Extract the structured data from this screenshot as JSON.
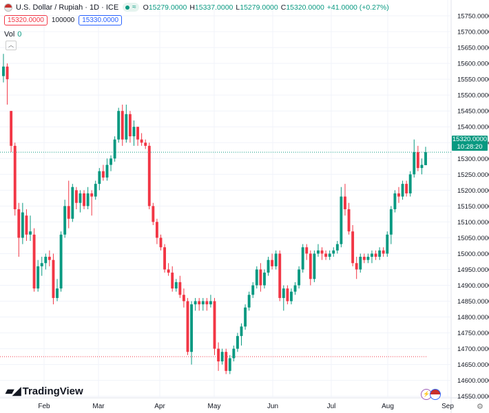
{
  "header": {
    "symbol": "U.S. Dollar / Rupiah · 1D · ICE",
    "pill_icon": "waves-icon",
    "pill_label": "≈",
    "open_label": "O",
    "open": "15279.0000",
    "high_label": "H",
    "high": "15337.0000",
    "low_label": "L",
    "low": "15279.0000",
    "close_label": "C",
    "close": "15320.0000",
    "change": "+41.0000 (+0.27%)"
  },
  "trade": {
    "sell": "15320.0000",
    "qty": "100000",
    "buy": "15330.0000"
  },
  "volume": {
    "label": "Vol",
    "value": "0"
  },
  "price_tag": {
    "price": "15320.0000",
    "countdown": "10:28:20"
  },
  "branding": {
    "logo": "TradingView"
  },
  "colors": {
    "up": "#089981",
    "down": "#f23645",
    "grid": "#f0f3fa"
  },
  "chart_data": {
    "type": "candlestick",
    "ylim": [
      14545,
      15800
    ],
    "y_ticks": [
      14550,
      14600,
      14650,
      14700,
      14750,
      14800,
      14850,
      14900,
      14950,
      15000,
      15050,
      15100,
      15150,
      15200,
      15250,
      15300,
      15350,
      15400,
      15450,
      15500,
      15550,
      15600,
      15650,
      15700,
      15750
    ],
    "x_labels": [
      "Feb",
      "Mar",
      "Apr",
      "May",
      "Jun",
      "Jul",
      "Aug",
      "Sep"
    ],
    "last_price": 15320,
    "low_line": 14675,
    "candles": [
      [
        15560,
        15630,
        15540,
        15590
      ],
      [
        15590,
        15600,
        15470,
        15550
      ],
      [
        15450,
        15450,
        15320,
        15340
      ],
      [
        15340,
        15350,
        15120,
        15140
      ],
      [
        15140,
        15160,
        14990,
        15050
      ],
      [
        15050,
        15160,
        15030,
        15130
      ],
      [
        15120,
        15140,
        15040,
        15060
      ],
      [
        15060,
        15120,
        15040,
        15070
      ],
      [
        15060,
        15080,
        14880,
        14890
      ],
      [
        14890,
        14980,
        14880,
        14960
      ],
      [
        14960,
        14990,
        14930,
        14970
      ],
      [
        14970,
        15000,
        14950,
        14990
      ],
      [
        14990,
        15010,
        14960,
        14980
      ],
      [
        14980,
        15000,
        14840,
        14860
      ],
      [
        14860,
        14920,
        14850,
        14890
      ],
      [
        14890,
        15070,
        14880,
        15060
      ],
      [
        15060,
        15170,
        15050,
        15150
      ],
      [
        15150,
        15230,
        15080,
        15110
      ],
      [
        15110,
        15220,
        15100,
        15210
      ],
      [
        15200,
        15210,
        15140,
        15160
      ],
      [
        15160,
        15200,
        15130,
        15190
      ],
      [
        15190,
        15200,
        15140,
        15150
      ],
      [
        15150,
        15210,
        15140,
        15190
      ],
      [
        15190,
        15200,
        15120,
        15180
      ],
      [
        15180,
        15230,
        15170,
        15220
      ],
      [
        15220,
        15270,
        15200,
        15260
      ],
      [
        15260,
        15280,
        15230,
        15240
      ],
      [
        15240,
        15300,
        15230,
        15280
      ],
      [
        15280,
        15310,
        15260,
        15300
      ],
      [
        15300,
        15370,
        15290,
        15360
      ],
      [
        15360,
        15460,
        15350,
        15450
      ],
      [
        15450,
        15470,
        15340,
        15360
      ],
      [
        15360,
        15470,
        15350,
        15440
      ],
      [
        15440,
        15450,
        15350,
        15370
      ],
      [
        15370,
        15420,
        15340,
        15400
      ],
      [
        15400,
        15400,
        15340,
        15360
      ],
      [
        15360,
        15380,
        15340,
        15350
      ],
      [
        15350,
        15360,
        15330,
        15340
      ],
      [
        15340,
        15350,
        15140,
        15150
      ],
      [
        15150,
        15160,
        15090,
        15100
      ],
      [
        15100,
        15110,
        15030,
        15050
      ],
      [
        15050,
        15060,
        15010,
        15020
      ],
      [
        15020,
        15030,
        14940,
        14950
      ],
      [
        14950,
        14970,
        14930,
        14940
      ],
      [
        14940,
        14960,
        14880,
        14890
      ],
      [
        14890,
        14920,
        14880,
        14910
      ],
      [
        14910,
        14930,
        14860,
        14870
      ],
      [
        14870,
        14890,
        14830,
        14850
      ],
      [
        14850,
        14860,
        14680,
        14690
      ],
      [
        14690,
        14850,
        14650,
        14840
      ],
      [
        14840,
        14860,
        14820,
        14850
      ],
      [
        14850,
        14860,
        14820,
        14840
      ],
      [
        14840,
        14860,
        14820,
        14850
      ],
      [
        14850,
        14860,
        14820,
        14840
      ],
      [
        14840,
        14870,
        14830,
        14850
      ],
      [
        14850,
        14860,
        14680,
        14700
      ],
      [
        14700,
        14720,
        14630,
        14660
      ],
      [
        14660,
        14700,
        14650,
        14690
      ],
      [
        14690,
        14700,
        14620,
        14630
      ],
      [
        14630,
        14680,
        14620,
        14670
      ],
      [
        14670,
        14710,
        14660,
        14700
      ],
      [
        14700,
        14750,
        14690,
        14740
      ],
      [
        14740,
        14780,
        14710,
        14770
      ],
      [
        14770,
        14840,
        14760,
        14830
      ],
      [
        14830,
        14880,
        14820,
        14870
      ],
      [
        14870,
        14910,
        14860,
        14900
      ],
      [
        14900,
        14960,
        14890,
        14950
      ],
      [
        14950,
        14970,
        14880,
        14900
      ],
      [
        14900,
        14950,
        14890,
        14940
      ],
      [
        14940,
        14990,
        14930,
        14980
      ],
      [
        14980,
        15000,
        14950,
        14960
      ],
      [
        14960,
        15010,
        14950,
        15000
      ],
      [
        15000,
        15010,
        14850,
        14860
      ],
      [
        14860,
        14900,
        14820,
        14890
      ],
      [
        14890,
        14900,
        14840,
        14850
      ],
      [
        14850,
        14890,
        14840,
        14880
      ],
      [
        14880,
        14910,
        14870,
        14900
      ],
      [
        14900,
        14960,
        14890,
        14950
      ],
      [
        14950,
        15030,
        14940,
        15020
      ],
      [
        15020,
        15030,
        14980,
        15000
      ],
      [
        15000,
        15010,
        14900,
        14920
      ],
      [
        14920,
        15010,
        14910,
        15000
      ],
      [
        15000,
        15030,
        14990,
        15010
      ],
      [
        15010,
        15020,
        14980,
        15000
      ],
      [
        15000,
        15010,
        14980,
        14990
      ],
      [
        14990,
        15010,
        14980,
        15000
      ],
      [
        15000,
        15020,
        14990,
        15010
      ],
      [
        15010,
        15040,
        15000,
        15030
      ],
      [
        15030,
        15210,
        15020,
        15180
      ],
      [
        15180,
        15220,
        15120,
        15140
      ],
      [
        15140,
        15160,
        15060,
        15070
      ],
      [
        15070,
        15090,
        14960,
        14970
      ],
      [
        14970,
        14990,
        14920,
        14950
      ],
      [
        14950,
        15000,
        14940,
        14990
      ],
      [
        14990,
        15000,
        14970,
        14980
      ],
      [
        14980,
        15000,
        14970,
        14990
      ],
      [
        14990,
        15010,
        14970,
        15000
      ],
      [
        15000,
        15010,
        14980,
        14990
      ],
      [
        14990,
        15020,
        14980,
        15010
      ],
      [
        15010,
        15020,
        14990,
        15000
      ],
      [
        15000,
        15070,
        14990,
        15060
      ],
      [
        15060,
        15150,
        15030,
        15140
      ],
      [
        15140,
        15200,
        15130,
        15190
      ],
      [
        15190,
        15210,
        15160,
        15180
      ],
      [
        15180,
        15230,
        15170,
        15220
      ],
      [
        15220,
        15230,
        15180,
        15190
      ],
      [
        15190,
        15260,
        15180,
        15250
      ],
      [
        15250,
        15360,
        15240,
        15320
      ],
      [
        15320,
        15340,
        15260,
        15270
      ],
      [
        15270,
        15300,
        15250,
        15280
      ],
      [
        15279,
        15337,
        15279,
        15320
      ]
    ]
  }
}
